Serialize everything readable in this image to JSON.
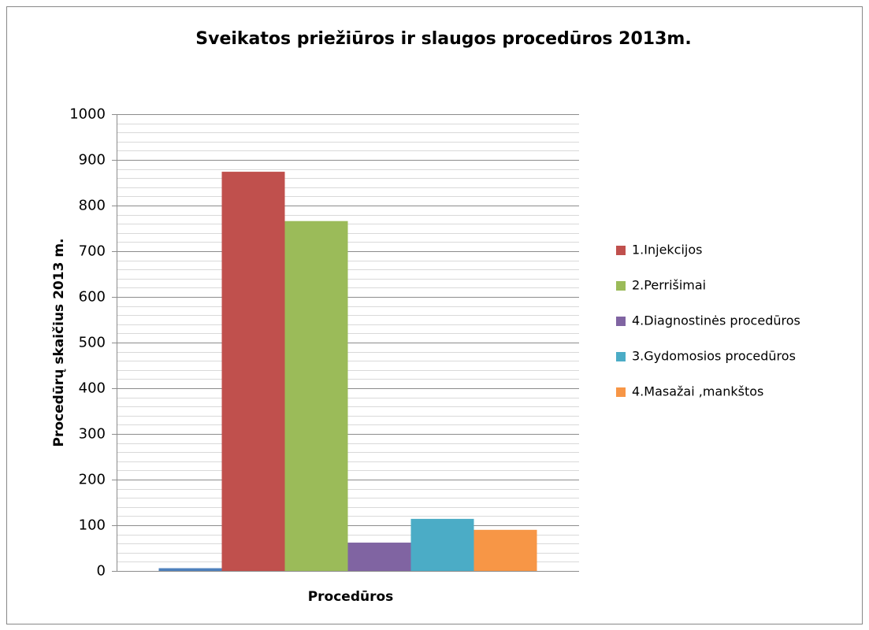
{
  "chart_data": {
    "type": "bar",
    "title": "Sveikatos priežiūros ir slaugos procedūros 2013m.",
    "x_label": "Procedūros",
    "y_label": "Procedūrų skaičius 2013 m.",
    "categories": [
      null
    ],
    "series": [
      {
        "name": null,
        "color": "#4f81bd",
        "values": [
          6
        ]
      },
      {
        "name": "1.Injekcijos",
        "color": "#c0504d",
        "values": [
          874
        ]
      },
      {
        "name": "2.Perrišimai",
        "color": "#9bbb59",
        "values": [
          766
        ]
      },
      {
        "name": "4.Diagnostinės procedūros",
        "color": "#8064a2",
        "values": [
          62
        ]
      },
      {
        "name": "3.Gydomosios procedūros",
        "color": "#4bacc6",
        "values": [
          114
        ]
      },
      {
        "name": "4.Masažai ,mankštos",
        "color": "#f79646",
        "values": [
          90
        ]
      }
    ],
    "ylim": [
      0,
      1000
    ],
    "yticks": [
      0,
      100,
      200,
      300,
      400,
      500,
      600,
      700,
      800,
      900,
      1000
    ],
    "minor_yticks": [
      20,
      40,
      60,
      80,
      120,
      140,
      160,
      180,
      220,
      240,
      260,
      280,
      320,
      340,
      360,
      380,
      420,
      440,
      460,
      480,
      520,
      540,
      560,
      580,
      620,
      640,
      660,
      680,
      720,
      740,
      760,
      780,
      820,
      840,
      860,
      880,
      920,
      940,
      960,
      980
    ],
    "grid": true,
    "legend": "right"
  }
}
